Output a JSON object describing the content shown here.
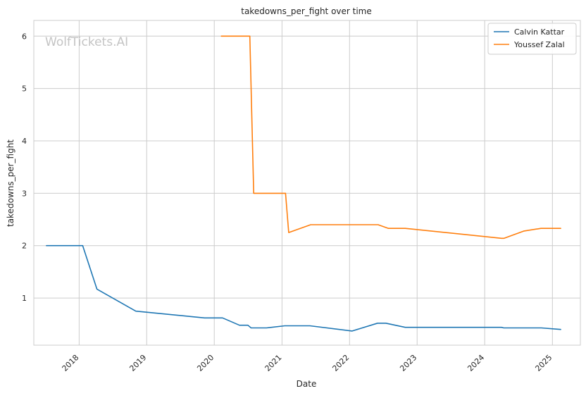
{
  "watermark": "WolfTickets.AI",
  "chart_data": {
    "type": "line",
    "title": "takedowns_per_fight over time",
    "xlabel": "Date",
    "ylabel": "takedowns_per_fight",
    "x_ticks": [
      "2018",
      "2019",
      "2020",
      "2021",
      "2022",
      "2023",
      "2024",
      "2025"
    ],
    "y_ticks": [
      1,
      2,
      3,
      4,
      5,
      6
    ],
    "xlim": [
      "2017-05-01",
      "2025-06-01"
    ],
    "ylim": [
      0.1,
      6.3
    ],
    "grid": true,
    "legend_position": "top-right",
    "series": [
      {
        "name": "Calvin Kattar",
        "color": "#1f77b4",
        "points": [
          [
            "2017-07-08",
            2.0
          ],
          [
            "2018-01-20",
            2.0
          ],
          [
            "2018-04-07",
            1.17
          ],
          [
            "2018-11-03",
            0.75
          ],
          [
            "2019-11-09",
            0.62
          ],
          [
            "2020-02-15",
            0.62
          ],
          [
            "2020-05-16",
            0.48
          ],
          [
            "2020-07-01",
            0.48
          ],
          [
            "2020-07-18",
            0.43
          ],
          [
            "2020-10-10",
            0.43
          ],
          [
            "2021-01-16",
            0.47
          ],
          [
            "2021-06-01",
            0.47
          ],
          [
            "2022-01-15",
            0.37
          ],
          [
            "2022-06-01",
            0.52
          ],
          [
            "2022-07-16",
            0.52
          ],
          [
            "2022-10-29",
            0.44
          ],
          [
            "2024-04-01",
            0.44
          ],
          [
            "2024-04-13",
            0.43
          ],
          [
            "2024-11-02",
            0.43
          ],
          [
            "2025-02-15",
            0.4
          ]
        ]
      },
      {
        "name": "Youssef Zalal",
        "color": "#ff7f0e",
        "points": [
          [
            "2020-02-08",
            6.0
          ],
          [
            "2020-07-11",
            6.0
          ],
          [
            "2020-08-01",
            3.0
          ],
          [
            "2021-01-20",
            3.0
          ],
          [
            "2021-02-06",
            2.25
          ],
          [
            "2021-06-05",
            2.4
          ],
          [
            "2022-06-04",
            2.4
          ],
          [
            "2022-07-30",
            2.33
          ],
          [
            "2022-10-29",
            2.33
          ],
          [
            "2024-04-01",
            2.14
          ],
          [
            "2024-04-15",
            2.14
          ],
          [
            "2024-08-01",
            2.28
          ],
          [
            "2024-10-31",
            2.33
          ],
          [
            "2025-02-15",
            2.33
          ]
        ]
      }
    ]
  }
}
